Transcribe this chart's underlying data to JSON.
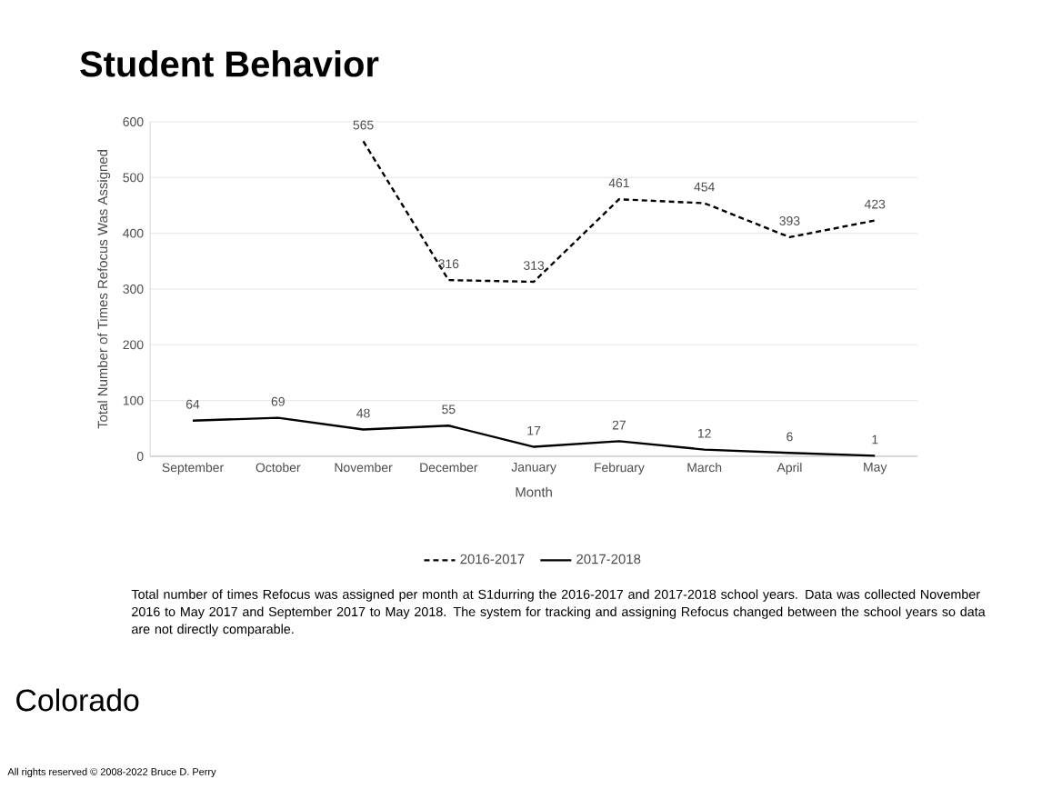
{
  "chart_data": {
    "type": "line",
    "title": "Student Behavior",
    "xlabel": "Month",
    "ylabel": "Total Number of Times Refocus Was Assigned",
    "categories": [
      "September",
      "October",
      "November",
      "December",
      "January",
      "February",
      "March",
      "April",
      "May"
    ],
    "series": [
      {
        "name": "2016-2017",
        "color": "#000000",
        "line_style": "dashed",
        "values": [
          null,
          null,
          565,
          316,
          313,
          461,
          454,
          393,
          423
        ]
      },
      {
        "name": "2017-2018",
        "color": "#000000",
        "line_style": "solid",
        "values": [
          64,
          69,
          48,
          55,
          17,
          27,
          12,
          6,
          1
        ]
      }
    ],
    "ylim": [
      0,
      600
    ],
    "yticks": [
      0,
      100,
      200,
      300,
      400,
      500,
      600
    ],
    "grid": "y",
    "legend": "bottom",
    "marker": "none",
    "data_labels": true,
    "annotations": [
      "Total number of times Refocus was assigned per month at S1durring the 2016-2017 and 2017-2018 school years. Data was collected November 2016 to May 2017 and September 2017 to May 2018. The system for tracking and assigning Refocus changed between the school years so data are not directly comparable.",
      "Colorado",
      "All rights reserved © 2008-2022 Bruce D. Perry"
    ]
  }
}
